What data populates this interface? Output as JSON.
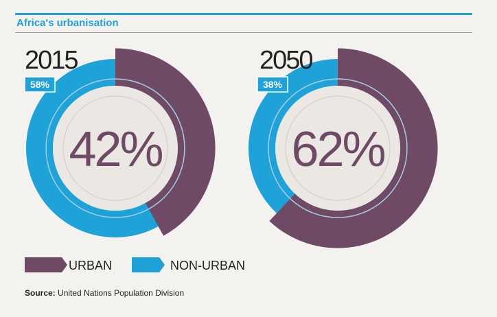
{
  "title": "Africa's urbanisation",
  "source": {
    "label": "Source:",
    "text": "United Nations Population Division"
  },
  "colors": {
    "urban": "#6e4a65",
    "non_urban": "#1fa2d8",
    "accent": "#1fa2d8",
    "inner": "#ebe7e3",
    "ring": "#a8cde2"
  },
  "chart_data": [
    {
      "type": "pie",
      "title": "2015",
      "categories": [
        "URBAN",
        "NON-URBAN"
      ],
      "values": [
        42,
        58
      ],
      "center_label": "42%",
      "badge_label": "58%"
    },
    {
      "type": "pie",
      "title": "2050",
      "categories": [
        "URBAN",
        "NON-URBAN"
      ],
      "values": [
        62,
        38
      ],
      "center_label": "62%",
      "badge_label": "38%"
    }
  ],
  "legend": [
    {
      "label": "URBAN",
      "color": "#6e4a65"
    },
    {
      "label": "NON-URBAN",
      "color": "#1fa2d8"
    }
  ]
}
